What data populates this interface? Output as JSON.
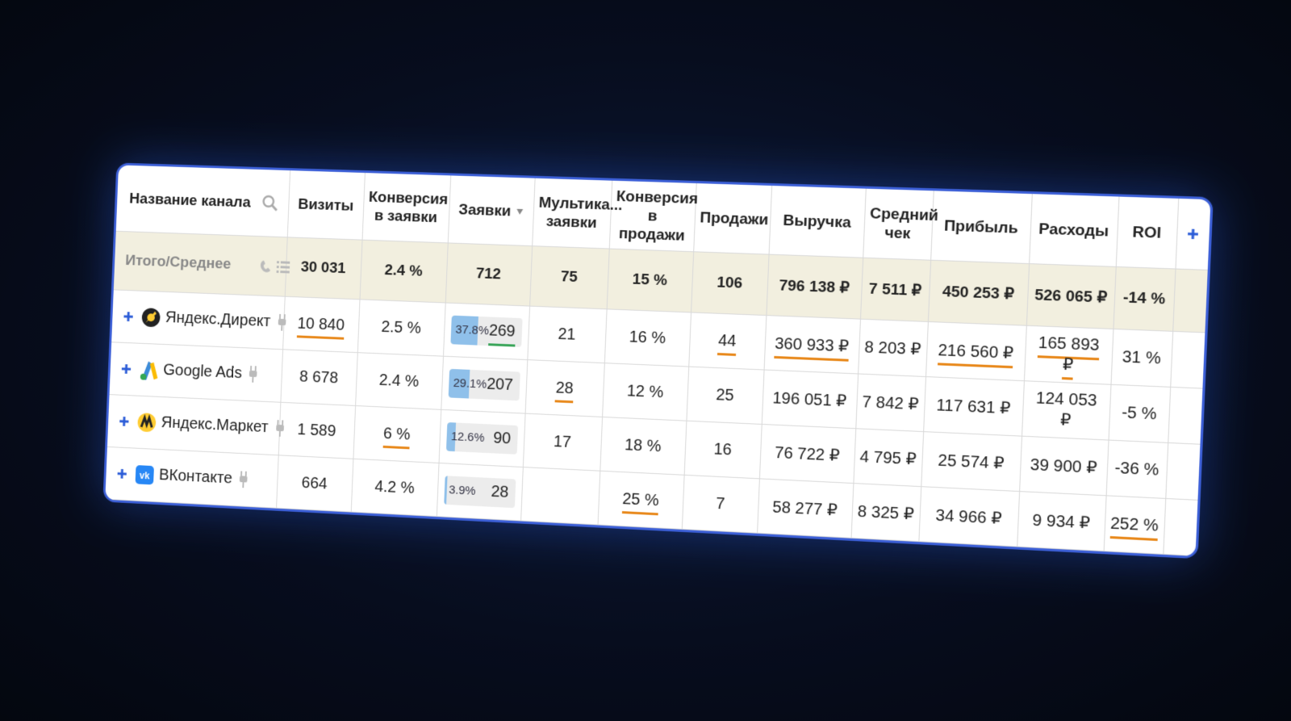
{
  "table": {
    "columns": [
      "Название канала",
      "Визиты",
      "Конверсия в заявки",
      "Заявки",
      "Мультика... заявки",
      "Конверсия в продажи",
      "Продажи",
      "Выручка",
      "Средний чек",
      "Прибыль",
      "Расходы",
      "ROI"
    ],
    "total": {
      "label": "Итого/Среднее",
      "cells": [
        "30 031",
        "2.4 %",
        "712",
        "75",
        "15 %",
        "106",
        "796 138 ₽",
        "7 511 ₽",
        "450 253 ₽",
        "526 065 ₽",
        "-14 %"
      ]
    },
    "underline_colors": {
      "orange": "#e8891c",
      "green": "#3aa55a"
    },
    "bar_color": "#8fc0ea",
    "rows": [
      {
        "name": "Яндекс.Директ",
        "cells": [
          {
            "text": "10 840",
            "underline": "orange"
          },
          "2.5 %",
          {
            "share": {
              "value": 37.8,
              "label": "37.8%"
            },
            "text": "269",
            "underline": "green"
          },
          "21",
          "16 %",
          {
            "text": "44",
            "underline": "orange"
          },
          {
            "text": "360 933 ₽",
            "underline": "orange"
          },
          "8 203 ₽",
          {
            "text": "216 560 ₽",
            "underline": "orange"
          },
          {
            "text": "165 893 ₽",
            "underline": "orange"
          },
          "31 %"
        ]
      },
      {
        "name": "Google Ads",
        "cells": [
          "8 678",
          "2.4 %",
          {
            "share": {
              "value": 29.1,
              "label": "29.1%"
            },
            "text": "207"
          },
          {
            "text": "28",
            "underline": "orange"
          },
          "12 %",
          "25",
          "196 051 ₽",
          "7 842 ₽",
          "117 631 ₽",
          "124 053 ₽",
          "-5 %"
        ]
      },
      {
        "name": "Яндекс.Маркет",
        "cells": [
          "1 589",
          {
            "text": "6 %",
            "underline": "orange"
          },
          {
            "share": {
              "value": 12.6,
              "label": "12.6%"
            },
            "text": "90"
          },
          "17",
          "18 %",
          "16",
          "76 722 ₽",
          "4 795 ₽",
          "25 574 ₽",
          "39 900 ₽",
          "-36 %"
        ]
      },
      {
        "name": "ВКонтакте",
        "cells": [
          "664",
          "4.2 %",
          {
            "share": {
              "value": 3.9,
              "label": "3.9%"
            },
            "text": "28"
          },
          null,
          {
            "text": "25 %",
            "underline": "orange"
          },
          "7",
          "58 277 ₽",
          "8 325 ₽",
          "34 966 ₽",
          "9 934 ₽",
          {
            "text": "252 %",
            "underline": "orange"
          }
        ]
      }
    ]
  }
}
